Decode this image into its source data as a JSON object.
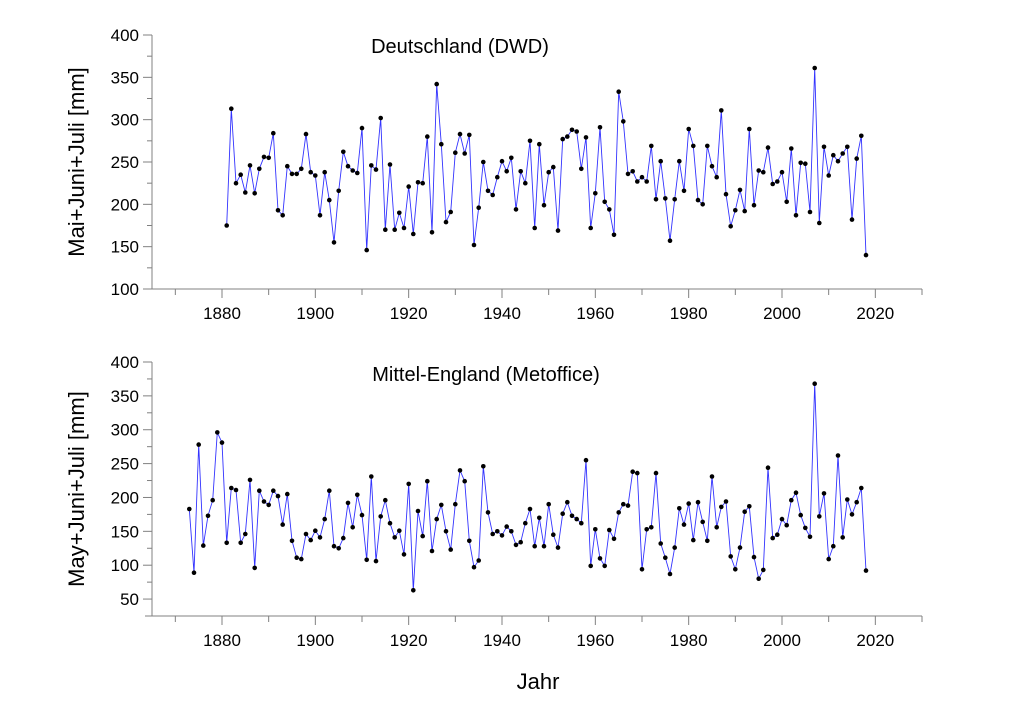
{
  "chart_data": [
    {
      "type": "line",
      "title": "Deutschland (DWD)",
      "xlabel": "",
      "ylabel": "Mai+Juni+Juli [mm]",
      "xlim": [
        1865,
        2030
      ],
      "ylim": [
        100,
        400
      ],
      "xticks": [
        1880,
        1900,
        1920,
        1940,
        1960,
        1980,
        2000,
        2020
      ],
      "yticks": [
        100,
        150,
        200,
        250,
        300,
        350,
        400
      ],
      "grid": false,
      "series": [
        {
          "name": "Deutschland (DWD)",
          "color": "#3333ff",
          "marker_color": "#000000",
          "x_start": 1881,
          "values": [
            175,
            313,
            225,
            235,
            214,
            246,
            213,
            242,
            256,
            255,
            284,
            193,
            187,
            245,
            236,
            236,
            242,
            283,
            238,
            234,
            187,
            238,
            205,
            155,
            216,
            262,
            245,
            240,
            237,
            290,
            146,
            246,
            241,
            302,
            170,
            247,
            170,
            190,
            172,
            221,
            165,
            226,
            225,
            280,
            167,
            342,
            271,
            179,
            191,
            261,
            283,
            260,
            282,
            152,
            196,
            250,
            216,
            211,
            232,
            251,
            239,
            255,
            194,
            239,
            225,
            275,
            172,
            271,
            199,
            238,
            244,
            169,
            277,
            280,
            288,
            286,
            242,
            279,
            172,
            213,
            291,
            203,
            194,
            164,
            333,
            298,
            236,
            239,
            227,
            232,
            227,
            269,
            206,
            251,
            207,
            157,
            206,
            251,
            216,
            289,
            269,
            205,
            200,
            269,
            245,
            232,
            311,
            212,
            174,
            193,
            217,
            192,
            289,
            199,
            240,
            238,
            267,
            224,
            227,
            238,
            203,
            266,
            187,
            249,
            248,
            191,
            361,
            178,
            268,
            234,
            258,
            251,
            260,
            268,
            182,
            254,
            281,
            140
          ]
        }
      ]
    },
    {
      "type": "line",
      "title": "Mittel-England (Metoffice)",
      "xlabel": "Jahr",
      "ylabel": "May+Juni+Juli [mm]",
      "xlim": [
        1865,
        2030
      ],
      "ylim": [
        25,
        400
      ],
      "xticks": [
        1880,
        1900,
        1920,
        1940,
        1960,
        1980,
        2000,
        2020
      ],
      "yticks": [
        50,
        100,
        150,
        200,
        250,
        300,
        350,
        400
      ],
      "grid": false,
      "series": [
        {
          "name": "Mittel-England (Metoffice)",
          "color": "#3333ff",
          "marker_color": "#000000",
          "x_start": 1873,
          "values": [
            183,
            89,
            278,
            129,
            173,
            196,
            296,
            281,
            133,
            214,
            211,
            133,
            146,
            226,
            96,
            210,
            194,
            189,
            210,
            202,
            160,
            205,
            136,
            111,
            109,
            146,
            137,
            151,
            141,
            168,
            210,
            128,
            125,
            140,
            192,
            156,
            204,
            174,
            108,
            231,
            106,
            172,
            196,
            162,
            141,
            151,
            116,
            220,
            63,
            180,
            143,
            224,
            121,
            168,
            189,
            150,
            123,
            190,
            240,
            224,
            136,
            97,
            107,
            246,
            178,
            146,
            150,
            144,
            157,
            150,
            130,
            134,
            162,
            183,
            128,
            170,
            128,
            190,
            145,
            126,
            176,
            193,
            173,
            168,
            162,
            255,
            99,
            153,
            110,
            99,
            152,
            139,
            178,
            190,
            188,
            238,
            236,
            94,
            153,
            156,
            236,
            132,
            111,
            87,
            126,
            184,
            160,
            191,
            137,
            193,
            164,
            136,
            231,
            156,
            186,
            194,
            113,
            94,
            126,
            179,
            187,
            112,
            80,
            93,
            244,
            140,
            145,
            168,
            159,
            196,
            207,
            174,
            155,
            142,
            368,
            172,
            206,
            109,
            128,
            262,
            141,
            197,
            175,
            193,
            214,
            92
          ]
        }
      ]
    }
  ]
}
